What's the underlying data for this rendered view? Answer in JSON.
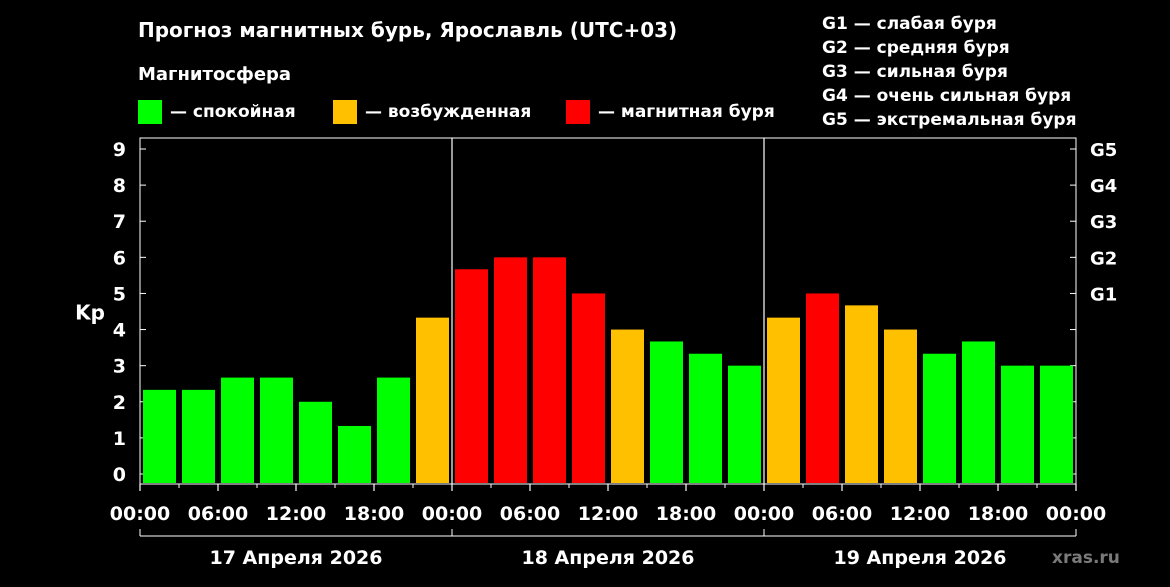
{
  "header": {
    "title": "Прогноз магнитных бурь, Ярославль (UTC+03)",
    "subtitle": "Магнитосфера"
  },
  "legend": [
    {
      "label": "— спокойная",
      "color": "#00ff00"
    },
    {
      "label": "— возбужденная",
      "color": "#ffc000"
    },
    {
      "label": "— магнитная буря",
      "color": "#ff0000"
    }
  ],
  "storm_scale": [
    "G1 — слабая буря",
    "G2 — средняя буря",
    "G3 — сильная буря",
    "G4 — очень сильная буря",
    "G5 — экстремальная буря"
  ],
  "watermark": "xras.ru",
  "colors": {
    "quiet": "#00ff00",
    "active": "#ffc000",
    "storm": "#ff0000",
    "background": "#000000",
    "axis": "#ffffff"
  },
  "chart_data": {
    "type": "bar",
    "ylabel": "Kp",
    "ylim": [
      0,
      9
    ],
    "yticks": [
      "0",
      "1",
      "2",
      "3",
      "4",
      "5",
      "6",
      "7",
      "8",
      "9"
    ],
    "right_ticks": [
      {
        "value": 5,
        "label": "G1"
      },
      {
        "value": 6,
        "label": "G2"
      },
      {
        "value": 7,
        "label": "G3"
      },
      {
        "value": 8,
        "label": "G4"
      },
      {
        "value": 9,
        "label": "G5"
      }
    ],
    "xtick_labels": [
      "00:00",
      "06:00",
      "12:00",
      "18:00",
      "00:00",
      "06:00",
      "12:00",
      "18:00",
      "00:00",
      "06:00",
      "12:00",
      "18:00",
      "00:00"
    ],
    "days": [
      "17 Апреля 2026",
      "18 Апреля 2026",
      "19 Апреля 2026"
    ],
    "interval_hours": 3,
    "values": [
      2.33,
      2.33,
      2.67,
      2.67,
      2.0,
      1.33,
      2.67,
      4.33,
      5.67,
      6.0,
      6.0,
      5.0,
      4.0,
      3.67,
      3.33,
      3.0,
      4.33,
      5.0,
      4.67,
      4.0,
      3.33,
      3.67,
      3.0,
      3.0
    ],
    "levels": [
      "quiet",
      "quiet",
      "quiet",
      "quiet",
      "quiet",
      "quiet",
      "quiet",
      "active",
      "storm",
      "storm",
      "storm",
      "storm",
      "active",
      "quiet",
      "quiet",
      "quiet",
      "active",
      "storm",
      "active",
      "active",
      "quiet",
      "quiet",
      "quiet",
      "quiet"
    ],
    "grid": false,
    "legend_position": "top"
  }
}
